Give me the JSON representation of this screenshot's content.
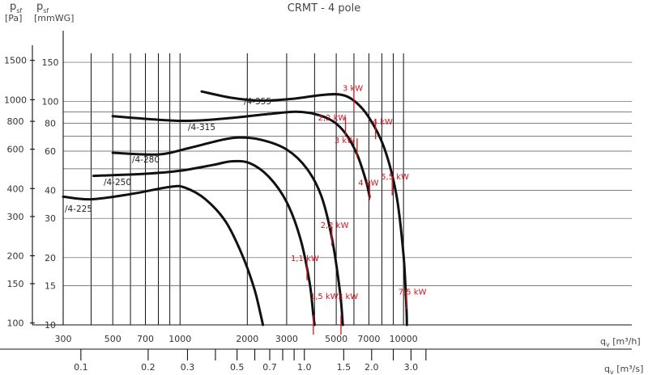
{
  "chart_data": {
    "type": "line",
    "title": "CRMT - 4 pole",
    "ylabel_left": {
      "symbol": "p",
      "sub": "sf",
      "unit": "[Pa]"
    },
    "ylabel_right": {
      "symbol": "p",
      "sub": "sf",
      "unit": "[mmWG]"
    },
    "xlabel_top": {
      "symbol": "q",
      "sub": "v",
      "unit": "[m³/h]"
    },
    "xlabel_bottom": {
      "symbol": "q",
      "sub": "v",
      "unit": "[m³/s]"
    },
    "x_scale": "log",
    "y_scale": "log",
    "xlim": [
      300,
      14000
    ],
    "ylim_mmwg": [
      10,
      190
    ],
    "x_ticks_m3h": [
      "300",
      "500",
      "700",
      "1000",
      "2000",
      "3000",
      "5000",
      "7000",
      "10000"
    ],
    "x_ticks_m3s": [
      "0.1",
      "0.2",
      "0.3",
      "0.5",
      "0.7",
      "1.0",
      "1.5",
      "2.0",
      "3.0"
    ],
    "y_ticks_pa": [
      "100",
      "150",
      "200",
      "300",
      "400",
      "600",
      "800",
      "1000",
      "1500"
    ],
    "y_ticks_mmwg": [
      "10",
      "15",
      "20",
      "30",
      "40",
      "60",
      "80",
      "100",
      "150"
    ],
    "series": [
      {
        "name": "/4-225",
        "points": [
          [
            300,
            37.5
          ],
          [
            400,
            36.5
          ],
          [
            600,
            38.5
          ],
          [
            900,
            41.5
          ],
          [
            1050,
            41.2
          ],
          [
            1300,
            36.5
          ],
          [
            1600,
            29
          ],
          [
            1900,
            20.5
          ],
          [
            2150,
            14.5
          ],
          [
            2300,
            11
          ],
          [
            2350,
            10
          ]
        ]
      },
      {
        "name": "/4-250",
        "points": [
          [
            410,
            46.5
          ],
          [
            700,
            47.5
          ],
          [
            1000,
            49
          ],
          [
            1400,
            52
          ],
          [
            1700,
            54
          ],
          [
            2050,
            53
          ],
          [
            2500,
            46
          ],
          [
            3000,
            35.5
          ],
          [
            3450,
            24.5
          ],
          [
            3800,
            15.5
          ],
          [
            3950,
            11
          ],
          [
            4000,
            10
          ]
        ]
      },
      {
        "name": "/4-280",
        "points": [
          [
            500,
            59
          ],
          [
            800,
            58
          ],
          [
            1100,
            62
          ],
          [
            1500,
            67
          ],
          [
            1800,
            69
          ],
          [
            2300,
            67.5
          ],
          [
            3000,
            61
          ],
          [
            3700,
            50
          ],
          [
            4300,
            37.5
          ],
          [
            4800,
            24
          ],
          [
            5200,
            14
          ],
          [
            5350,
            10
          ]
        ]
      },
      {
        "name": "/4-315",
        "points": [
          [
            500,
            86
          ],
          [
            1000,
            82
          ],
          [
            1600,
            84
          ],
          [
            2500,
            88
          ],
          [
            3300,
            90
          ],
          [
            4000,
            88
          ],
          [
            4800,
            82
          ],
          [
            5500,
            72
          ],
          [
            6200,
            58
          ],
          [
            6800,
            44
          ],
          [
            7050,
            37.5
          ]
        ]
      },
      {
        "name": "/4-355",
        "points": [
          [
            1250,
            111
          ],
          [
            1700,
            104
          ],
          [
            2300,
            101
          ],
          [
            3200,
            103
          ],
          [
            4300,
            107
          ],
          [
            5200,
            107.5
          ],
          [
            6000,
            101
          ],
          [
            7000,
            85
          ],
          [
            8200,
            62
          ],
          [
            9300,
            38
          ],
          [
            10000,
            20.5
          ],
          [
            10300,
            12
          ],
          [
            10350,
            10
          ]
        ]
      }
    ],
    "motor_markers": [
      {
        "label": "3 kW",
        "x": 6000,
        "y": 101
      },
      {
        "label": "2,2 kW",
        "x": 5500,
        "y": 77
      },
      {
        "label": "4 kW",
        "x": 7500,
        "y": 75
      },
      {
        "label": "3 kW",
        "x": 6200,
        "y": 62
      },
      {
        "label": "4 kW",
        "x": 7050,
        "y": 40
      },
      {
        "label": "5,5 kW",
        "x": 8900,
        "y": 42
      },
      {
        "label": "2,2 kW",
        "x": 4780,
        "y": 25
      },
      {
        "label": "1,1 kW",
        "x": 3700,
        "y": 17.5
      },
      {
        "label": "7,5 kW",
        "x": 10300,
        "y": 13
      },
      {
        "label": "1,5 kW",
        "x": 3950,
        "y": 10
      },
      {
        "label": "3 kW",
        "x": 5250,
        "y": 10
      }
    ]
  }
}
